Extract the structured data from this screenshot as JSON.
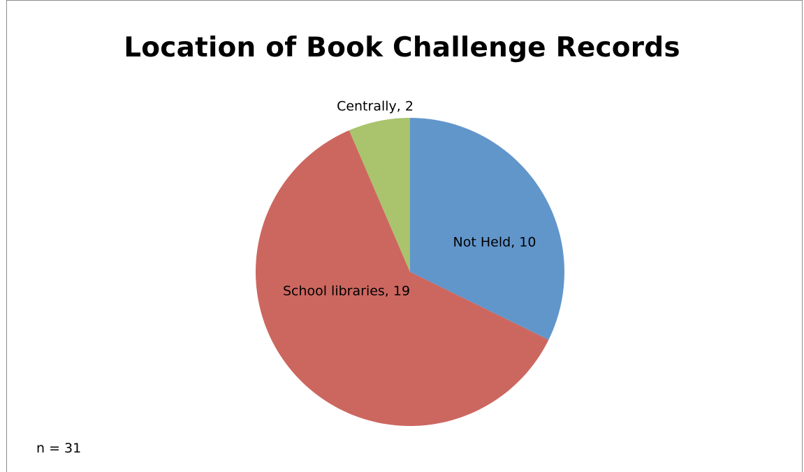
{
  "chart_data": {
    "type": "pie",
    "title": "Location of Book Challenge Records",
    "slices": [
      {
        "label": "Not Held",
        "value": 10,
        "display": "Not Held, 10",
        "color": "#6196cb"
      },
      {
        "label": "School libraries",
        "value": 19,
        "display": "School libraries, 19",
        "color": "#cc6760"
      },
      {
        "label": "Centrally",
        "value": 2,
        "display": "Centrally, 2",
        "color": "#a9c46d"
      }
    ],
    "start_angle": "12 o'clock",
    "direction": "clockwise",
    "legend": "none"
  },
  "note": "n = 31"
}
